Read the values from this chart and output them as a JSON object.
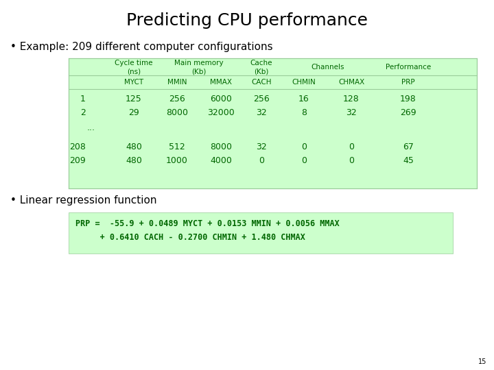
{
  "title": "Predicting CPU performance",
  "bullet1": "Example: 209 different computer configurations",
  "bullet2": "Linear regression function",
  "table_bg": "#ccffcc",
  "table_subheader_cols": [
    "MYCT",
    "MMIN",
    "MMAX",
    "CACH",
    "CHMIN",
    "CHMAX",
    "PRP"
  ],
  "table_rows": [
    [
      "1",
      "125",
      "256",
      "6000",
      "256",
      "16",
      "128",
      "198"
    ],
    [
      "2",
      "29",
      "8000",
      "32000",
      "32",
      "8",
      "32",
      "269"
    ],
    [
      "...",
      "",
      "",
      "",
      "",
      "",
      "",
      ""
    ],
    [
      "208",
      "480",
      "512",
      "8000",
      "32",
      "0",
      "0",
      "67"
    ],
    [
      "209",
      "480",
      "1000",
      "4000",
      "0",
      "0",
      "0",
      "45"
    ]
  ],
  "formula_bg": "#ccffcc",
  "formula_line1": "PRP =  -55.9 + 0.0489 MYCT + 0.0153 MMIN + 0.0056 MMAX",
  "formula_line2": "     + 0.6410 CACH - 0.2700 CHMIN + 1.480 CHMAX",
  "formula_color": "#006600",
  "table_text_color": "#006600",
  "page_num": "15"
}
